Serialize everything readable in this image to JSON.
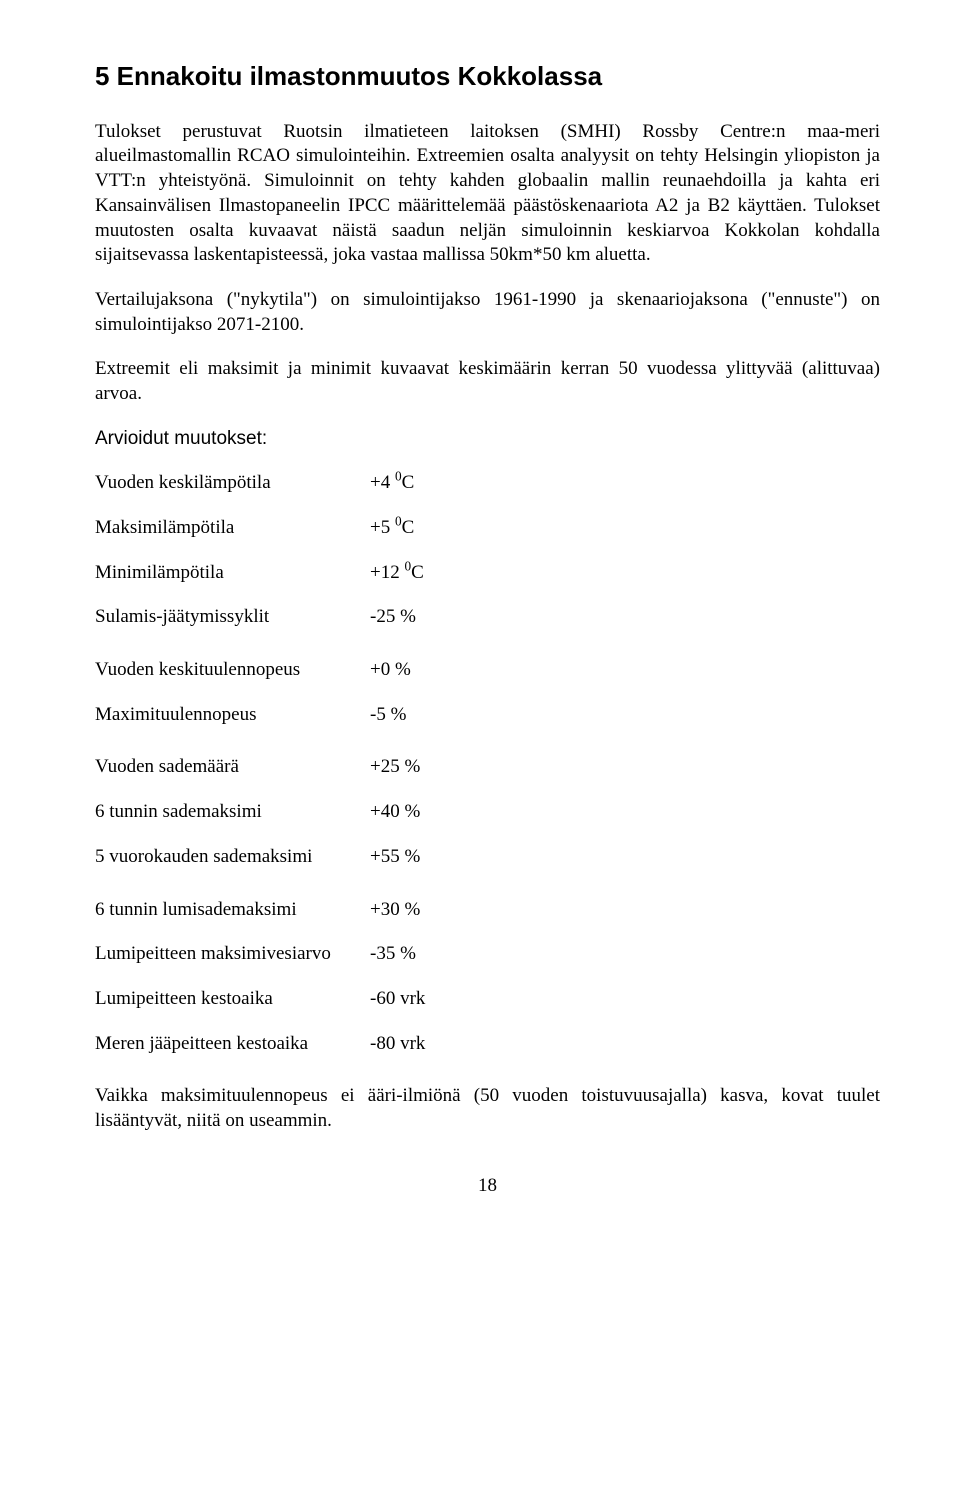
{
  "heading": "5 Ennakoitu ilmastonmuutos Kokkolassa",
  "para1": "Tulokset perustuvat Ruotsin ilmatieteen laitoksen (SMHI) Rossby Centre:n maa-meri alueilmastomallin RCAO simulointeihin. Extreemien osalta analyysit on tehty Helsingin yliopiston ja VTT:n yhteistyönä. Simuloinnit on tehty kahden globaalin mallin reunaehdoilla ja kahta eri Kansainvälisen Ilmastopaneelin IPCC määrittelemää päästöskenaariota A2 ja B2 käyttäen. Tulokset muutosten osalta kuvaavat näistä saadun neljän simuloinnin keskiarvoa Kokkolan kohdalla sijaitsevassa laskentapisteessä, joka vastaa mallissa 50km*50 km aluetta.",
  "para2": "Vertailujaksona (\"nykytila\") on simulointijakso 1961-1990 ja skenaariojaksona (\"ennuste\") on simulointijakso 2071-2100.",
  "para3": "Extreemit eli maksimit ja minimit kuvaavat keskimäärin kerran 50 vuodessa ylittyvää (alittuvaa) arvoa.",
  "subheading": "Arvioidut muutokset:",
  "group1": [
    {
      "label": "Vuoden keskilämpötila",
      "prefix": "+4 ",
      "sup": "0",
      "suffix": "C"
    },
    {
      "label": "Maksimilämpötila",
      "prefix": "+5 ",
      "sup": "0",
      "suffix": "C"
    },
    {
      "label": "Minimilämpötila",
      "prefix": "+12 ",
      "sup": "0",
      "suffix": "C"
    },
    {
      "label": "Sulamis-jäätymissyklit",
      "prefix": "-25 %",
      "sup": "",
      "suffix": ""
    }
  ],
  "group2": [
    {
      "label": "Vuoden keskituulennopeus",
      "value": "+0 %"
    },
    {
      "label": "Maximituulennopeus",
      "value": "-5 %"
    }
  ],
  "group3": [
    {
      "label": "Vuoden sademäärä",
      "value": "+25 %"
    },
    {
      "label": "6 tunnin sademaksimi",
      "value": "+40 %"
    },
    {
      "label": "5 vuorokauden sademaksimi",
      "value": "+55 %"
    }
  ],
  "group4": [
    {
      "label": "6 tunnin lumisademaksimi",
      "value": "+30 %"
    },
    {
      "label": "Lumipeitteen maksimivesiarvo",
      "value": "-35 %"
    },
    {
      "label": "Lumipeitteen kestoaika",
      "value": "-60 vrk"
    },
    {
      "label": "Meren jääpeitteen kestoaika",
      "value": "-80 vrk"
    }
  ],
  "para4": "Vaikka maksimituulennopeus ei ääri-ilmiönä (50 vuoden toistuvuusajalla) kasva, kovat tuulet lisääntyvät, niitä on useammin.",
  "pageNumber": "18"
}
